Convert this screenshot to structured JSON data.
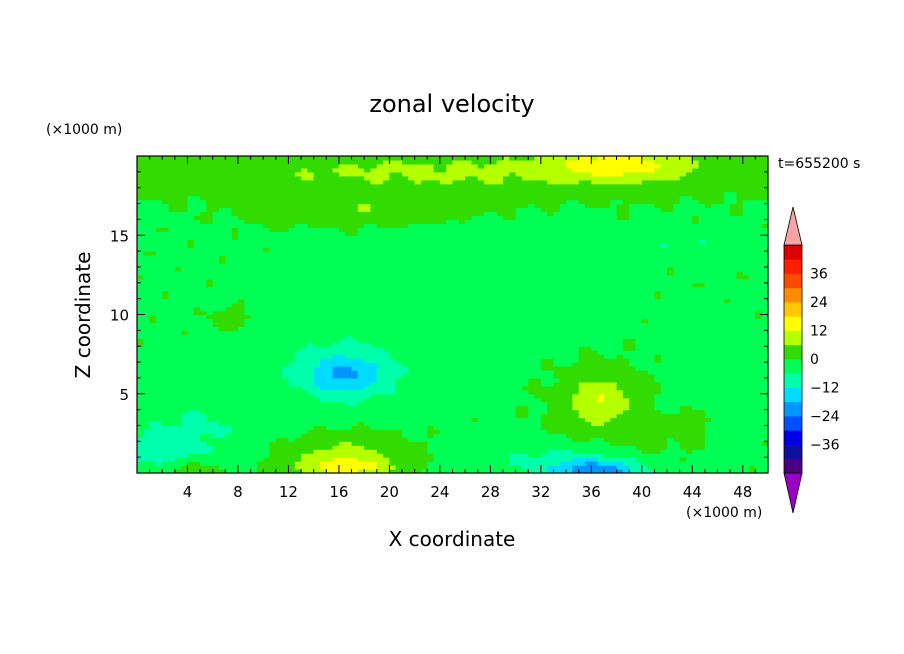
{
  "chart_data": {
    "type": "heatmap",
    "title": "zonal velocity",
    "xlabel": "X coordinate",
    "ylabel": "Z coordinate",
    "x_unit": "(×1000 m)",
    "y_unit": "(×1000 m)",
    "time_label": "t=655200 s",
    "xlim": [
      0,
      50
    ],
    "ylim": [
      0,
      20
    ],
    "x_ticks": [
      4,
      8,
      12,
      16,
      20,
      24,
      28,
      32,
      36,
      40,
      44,
      48
    ],
    "y_ticks": [
      5,
      10,
      15
    ],
    "colorbar": {
      "tick_labels": [
        "36",
        "24",
        "12",
        "0",
        "−12",
        "−24",
        "−36"
      ],
      "tick_values": [
        36,
        24,
        12,
        0,
        -12,
        -24,
        -36
      ],
      "levels": [
        -42,
        -36,
        -30,
        -24,
        -18,
        -12,
        -6,
        0,
        6,
        12,
        18,
        24,
        30,
        36,
        42
      ],
      "colors": [
        "#4b0082",
        "#1010a0",
        "#0000e6",
        "#0050ff",
        "#0096ff",
        "#00dcff",
        "#00ffaa",
        "#00ff55",
        "#32dc00",
        "#b4ff00",
        "#ffff00",
        "#ffc800",
        "#ff8c00",
        "#ff4b00",
        "#ff1e00",
        "#dc0000"
      ],
      "over_color": "#f5a5a5",
      "under_color": "#9a00c8"
    },
    "base_value": -1,
    "features": [
      {
        "x": 16.5,
        "z": 6.3,
        "sx": 3.2,
        "sz": 1.3,
        "value": -13
      },
      {
        "x": 16,
        "z": 6.5,
        "sx": 6.5,
        "sz": 3.3,
        "value": -5
      },
      {
        "x": 5,
        "z": 3,
        "sx": 5,
        "sz": 2.5,
        "value": -5
      },
      {
        "x": 2,
        "z": 1.2,
        "sx": 3,
        "sz": 1.5,
        "value": -7
      },
      {
        "x": 16.5,
        "z": 0.3,
        "sx": 4,
        "sz": 0.9,
        "value": 14
      },
      {
        "x": 16.5,
        "z": 1.6,
        "sx": 5,
        "sz": 1.3,
        "value": 7
      },
      {
        "x": 4,
        "z": 0.3,
        "sx": 2.5,
        "sz": 0.6,
        "value": 8
      },
      {
        "x": 36.5,
        "z": 0.1,
        "sx": 3.5,
        "sz": 0.8,
        "value": -20
      },
      {
        "x": 33,
        "z": 0.8,
        "sx": 6,
        "sz": 1.2,
        "value": -6
      },
      {
        "x": 36.5,
        "z": 4.6,
        "sx": 2.2,
        "sz": 1.5,
        "value": 8
      },
      {
        "x": 37,
        "z": 4.5,
        "sx": 4.2,
        "sz": 2.4,
        "value": 5
      },
      {
        "x": 44,
        "z": 3,
        "sx": 1.2,
        "sz": 1.2,
        "value": 7
      },
      {
        "x": 46,
        "z": 5.5,
        "sx": 3.5,
        "sz": 2.5,
        "value": -4
      },
      {
        "x": 26,
        "z": 12,
        "sx": 8,
        "sz": 3.5,
        "value": -4
      },
      {
        "x": 43,
        "z": 14.5,
        "sx": 4,
        "sz": 0.8,
        "value": -5
      },
      {
        "x": 25,
        "z": 19,
        "sx": 26,
        "sz": 1.6,
        "value": 8
      },
      {
        "x": 38,
        "z": 19.5,
        "sx": 5,
        "sz": 0.9,
        "value": 12
      },
      {
        "x": 18,
        "z": 16.5,
        "sx": 8,
        "sz": 0.9,
        "value": 6
      },
      {
        "x": 27,
        "z": 10.5,
        "sx": 2,
        "sz": 1.2,
        "value": 3
      },
      {
        "x": 7.5,
        "z": 9.8,
        "sx": 1.6,
        "sz": 0.6,
        "value": 5
      },
      {
        "x": 40,
        "z": 1.8,
        "sx": 3,
        "sz": 1.5,
        "value": 2
      }
    ]
  }
}
